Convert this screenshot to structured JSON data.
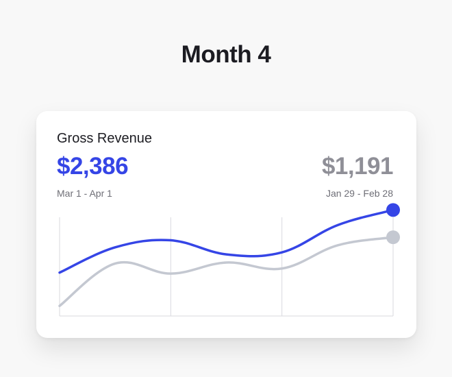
{
  "page": {
    "title": "Month 4"
  },
  "card": {
    "label": "Gross Revenue",
    "current": {
      "value": "$2,386",
      "range": "Mar 1 - Apr 1",
      "color": "#3545e6"
    },
    "previous": {
      "value": "$1,191",
      "range": "Jan 29 - Feb 28",
      "color": "#c4c8d1"
    }
  },
  "chart_data": {
    "type": "line",
    "title": "",
    "xlabel": "",
    "ylabel": "",
    "grid": "vertical",
    "legend": "none",
    "x": [
      0,
      0.5,
      1,
      1.5,
      2,
      2.5,
      3
    ],
    "series": [
      {
        "values": [
          43,
          68,
          75,
          61,
          63,
          90,
          105
        ],
        "color": "#3545e6",
        "end_marker": true
      },
      {
        "values": [
          10,
          52,
          42,
          53,
          47,
          70,
          78
        ],
        "color": "#c4c8d1",
        "end_marker": true
      }
    ],
    "xlim": [
      0,
      3
    ],
    "ylim": [
      0,
      110
    ]
  }
}
